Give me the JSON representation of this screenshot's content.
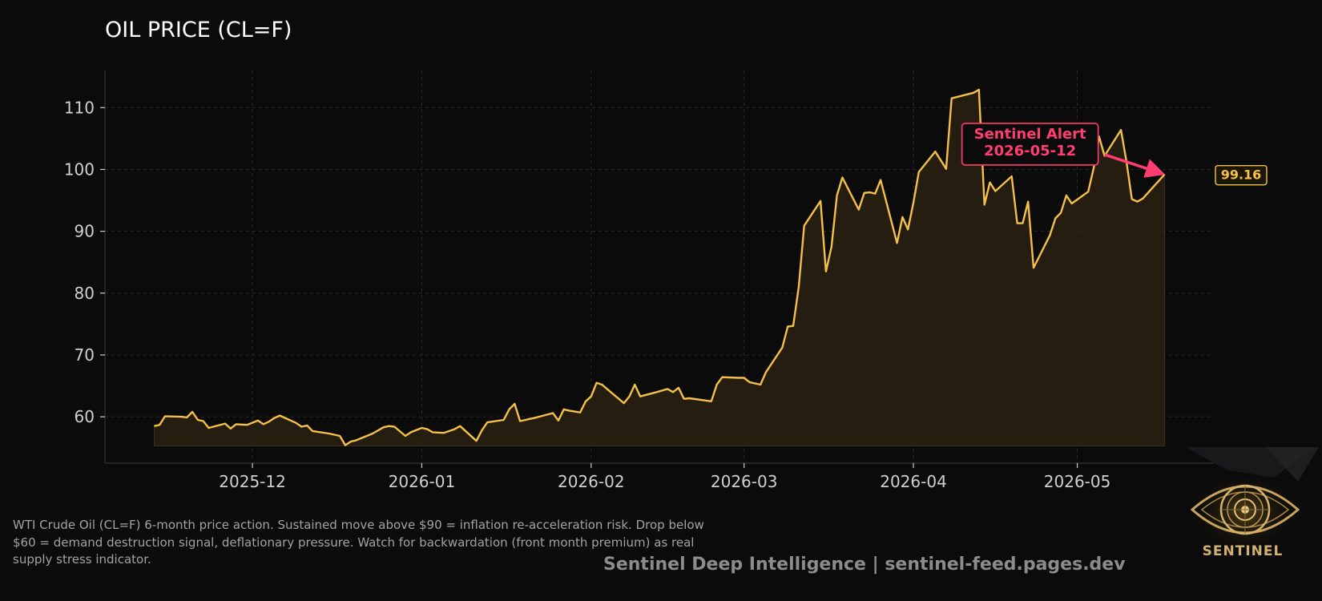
{
  "header": {
    "title": "OIL PRICE (CL=F)"
  },
  "caption": {
    "text": "WTI Crude Oil (CL=F) 6-month price action. Sustained move above $90 = inflation re-acceleration risk. Drop below $60 = demand destruction signal, deflationary pressure. Watch for backwardation (front month premium) as real supply stress indicator."
  },
  "footer": {
    "text": "Sentinel Deep Intelligence  |  sentinel-feed.pages.dev"
  },
  "logo": {
    "text": "SENTINEL",
    "icon": "eye-icon"
  },
  "colors": {
    "background": "#0b0b0b",
    "line": "#f5c04a",
    "fill": "#2a2212",
    "alert": "#ff3d71",
    "grid": "#2a2a2a",
    "tick_text": "#d0d0d0"
  },
  "chart_data": {
    "type": "area",
    "ylim": [
      52.5,
      116
    ],
    "xlim": [
      "2025-11-04",
      "2026-05-26"
    ],
    "yticks": [
      60,
      70,
      80,
      90,
      100,
      110
    ],
    "xticks": [
      "2025-12-01",
      "2026-01-01",
      "2026-02-01",
      "2026-03-01",
      "2026-04-01",
      "2026-05-01"
    ],
    "xtick_labels": [
      "2025-12",
      "2026-01",
      "2026-02",
      "2026-03",
      "2026-04",
      "2026-05"
    ],
    "grid": true,
    "fill_base": 55.3,
    "series": [
      {
        "points": [
          [
            "2025-11-13",
            58.5
          ],
          [
            "2025-11-14",
            58.7
          ],
          [
            "2025-11-15",
            60.1
          ],
          [
            "2025-11-18",
            60.0
          ],
          [
            "2025-11-19",
            59.9
          ],
          [
            "2025-11-20",
            60.8
          ],
          [
            "2025-11-21",
            59.5
          ],
          [
            "2025-11-22",
            59.3
          ],
          [
            "2025-11-23",
            58.2
          ],
          [
            "2025-11-26",
            58.9
          ],
          [
            "2025-11-27",
            58.1
          ],
          [
            "2025-11-28",
            58.8
          ],
          [
            "2025-11-30",
            58.7
          ],
          [
            "2025-12-02",
            59.4
          ],
          [
            "2025-12-03",
            58.8
          ],
          [
            "2025-12-04",
            59.2
          ],
          [
            "2025-12-05",
            59.8
          ],
          [
            "2025-12-06",
            60.2
          ],
          [
            "2025-12-09",
            59.0
          ],
          [
            "2025-12-10",
            58.4
          ],
          [
            "2025-12-11",
            58.6
          ],
          [
            "2025-12-12",
            57.7
          ],
          [
            "2025-12-15",
            57.3
          ],
          [
            "2025-12-17",
            56.9
          ],
          [
            "2025-12-18",
            55.4
          ],
          [
            "2025-12-19",
            56.0
          ],
          [
            "2025-12-20",
            56.2
          ],
          [
            "2025-12-23",
            57.3
          ],
          [
            "2025-12-25",
            58.3
          ],
          [
            "2025-12-26",
            58.5
          ],
          [
            "2025-12-27",
            58.4
          ],
          [
            "2025-12-29",
            56.9
          ],
          [
            "2025-12-30",
            57.5
          ],
          [
            "2026-01-01",
            58.2
          ],
          [
            "2026-01-02",
            58.0
          ],
          [
            "2026-01-03",
            57.5
          ],
          [
            "2026-01-05",
            57.4
          ],
          [
            "2026-01-07",
            58.0
          ],
          [
            "2026-01-08",
            58.5
          ],
          [
            "2026-01-11",
            56.1
          ],
          [
            "2026-01-12",
            57.8
          ],
          [
            "2026-01-13",
            59.1
          ],
          [
            "2026-01-16",
            59.5
          ],
          [
            "2026-01-17",
            61.2
          ],
          [
            "2026-01-18",
            62.1
          ],
          [
            "2026-01-19",
            59.3
          ],
          [
            "2026-01-22",
            59.9
          ],
          [
            "2026-01-25",
            60.6
          ],
          [
            "2026-01-26",
            59.4
          ],
          [
            "2026-01-27",
            61.2
          ],
          [
            "2026-01-28",
            61.0
          ],
          [
            "2026-01-30",
            60.7
          ],
          [
            "2026-01-31",
            62.5
          ],
          [
            "2026-02-01",
            63.3
          ],
          [
            "2026-02-02",
            65.5
          ],
          [
            "2026-02-03",
            65.2
          ],
          [
            "2026-02-05",
            63.7
          ],
          [
            "2026-02-07",
            62.2
          ],
          [
            "2026-02-08",
            63.3
          ],
          [
            "2026-02-09",
            65.2
          ],
          [
            "2026-02-10",
            63.3
          ],
          [
            "2026-02-13",
            64.0
          ],
          [
            "2026-02-15",
            64.5
          ],
          [
            "2026-02-16",
            64.0
          ],
          [
            "2026-02-17",
            64.7
          ],
          [
            "2026-02-18",
            62.9
          ],
          [
            "2026-02-19",
            63.0
          ],
          [
            "2026-02-23",
            62.5
          ],
          [
            "2026-02-24",
            65.2
          ],
          [
            "2026-02-25",
            66.4
          ],
          [
            "2026-02-28",
            66.3
          ],
          [
            "2026-03-01",
            66.3
          ],
          [
            "2026-03-02",
            65.6
          ],
          [
            "2026-03-04",
            65.2
          ],
          [
            "2026-03-05",
            67.2
          ],
          [
            "2026-03-08",
            71.2
          ],
          [
            "2026-03-09",
            74.6
          ],
          [
            "2026-03-10",
            74.7
          ],
          [
            "2026-03-11",
            81.0
          ],
          [
            "2026-03-12",
            90.9
          ],
          [
            "2026-03-15",
            94.9
          ],
          [
            "2026-03-16",
            83.5
          ],
          [
            "2026-03-17",
            87.5
          ],
          [
            "2026-03-18",
            95.8
          ],
          [
            "2026-03-19",
            98.7
          ],
          [
            "2026-03-22",
            93.5
          ],
          [
            "2026-03-23",
            96.2
          ],
          [
            "2026-03-24",
            96.3
          ],
          [
            "2026-03-25",
            96.1
          ],
          [
            "2026-03-26",
            98.3
          ],
          [
            "2026-03-29",
            88.1
          ],
          [
            "2026-03-30",
            92.3
          ],
          [
            "2026-03-31",
            90.3
          ],
          [
            "2026-04-01",
            94.6
          ],
          [
            "2026-04-02",
            99.6
          ],
          [
            "2026-04-05",
            102.9
          ],
          [
            "2026-04-07",
            100.1
          ],
          [
            "2026-04-08",
            111.5
          ],
          [
            "2026-04-12",
            112.4
          ],
          [
            "2026-04-13",
            112.9
          ],
          [
            "2026-04-14",
            94.3
          ],
          [
            "2026-04-15",
            97.9
          ],
          [
            "2026-04-16",
            96.5
          ],
          [
            "2026-04-19",
            98.9
          ],
          [
            "2026-04-20",
            91.3
          ],
          [
            "2026-04-21",
            91.3
          ],
          [
            "2026-04-22",
            94.8
          ],
          [
            "2026-04-23",
            84.1
          ],
          [
            "2026-04-26",
            89.4
          ],
          [
            "2026-04-27",
            92.1
          ],
          [
            "2026-04-28",
            93.0
          ],
          [
            "2026-04-29",
            95.8
          ],
          [
            "2026-04-30",
            94.5
          ],
          [
            "2026-05-03",
            96.4
          ],
          [
            "2026-05-04",
            100.2
          ],
          [
            "2026-05-05",
            105.3
          ],
          [
            "2026-05-06",
            102.2
          ],
          [
            "2026-05-09",
            106.4
          ],
          [
            "2026-05-10",
            101.3
          ],
          [
            "2026-05-11",
            95.2
          ],
          [
            "2026-05-12",
            94.8
          ],
          [
            "2026-05-13",
            95.3
          ],
          [
            "2026-05-17",
            99.2
          ]
        ]
      }
    ],
    "last_value_label": "99.16",
    "annotation": {
      "text_line1": "Sentinel Alert",
      "text_line2": "2026-05-12",
      "target": [
        "2026-05-17",
        99.2
      ],
      "anchor": [
        "2026-05-06",
        102.4
      ]
    }
  }
}
